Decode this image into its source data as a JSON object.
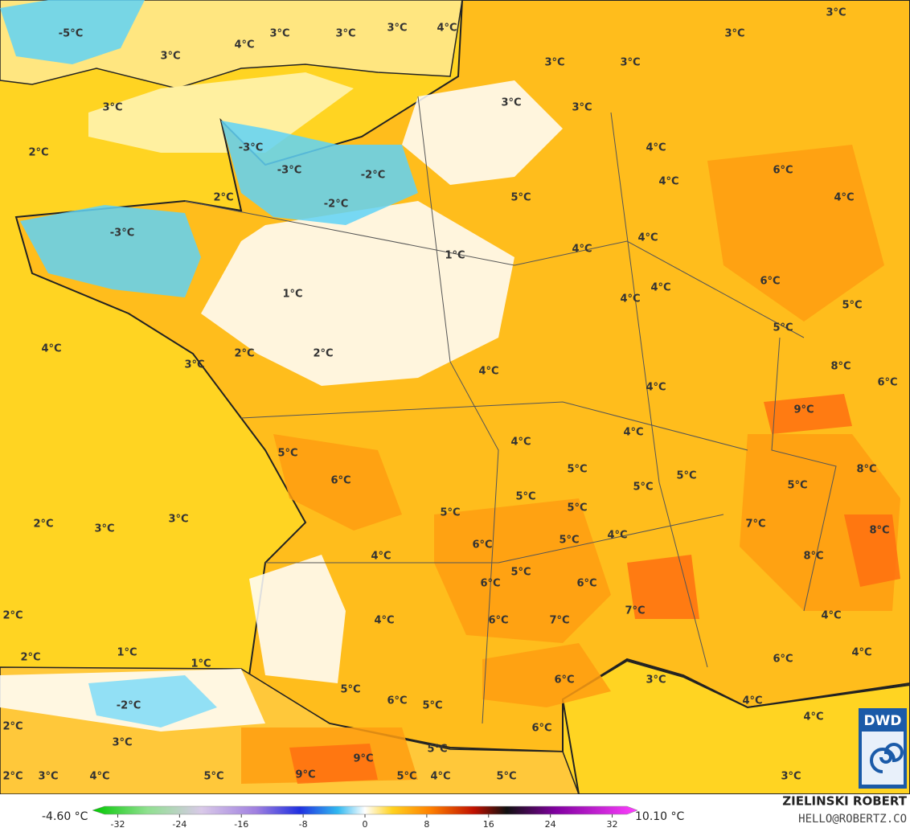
{
  "map_labels": [
    "-5°C",
    "3°C",
    "3°C",
    "3°C",
    "4°C",
    "3°C",
    "4°C",
    "3°C",
    "3°C",
    "3°C",
    "3°C",
    "3°C",
    "3°C",
    "3°C",
    "2°C",
    "-3°C",
    "-3°C",
    "-2°C",
    "4°C",
    "6°C",
    "2°C",
    "-2°C",
    "5°C",
    "4°C",
    "4°C",
    "-3°C",
    "4°C",
    "1°C",
    "4°C",
    "6°C",
    "4°C",
    "1°C",
    "4°C",
    "5°C",
    "5°C",
    "4°C",
    "2°C",
    "2°C",
    "3°C",
    "4°C",
    "8°C",
    "4°C",
    "6°C",
    "9°C",
    "4°C",
    "4°C",
    "5°C",
    "8°C",
    "6°C",
    "5°C",
    "5°C",
    "5°C",
    "5°C",
    "5°C",
    "5°C",
    "5°C",
    "3°C",
    "2°C",
    "3°C",
    "7°C",
    "8°C",
    "6°C",
    "4°C",
    "5°C",
    "4°C",
    "8°C",
    "5°C",
    "6°C",
    "6°C",
    "2°C",
    "4°C",
    "6°C",
    "7°C",
    "7°C",
    "4°C",
    "1°C",
    "1°C",
    "2°C",
    "4°C",
    "6°C",
    "3°C",
    "6°C",
    "5°C",
    "-2°C",
    "6°C",
    "5°C",
    "4°C",
    "4°C",
    "2°C",
    "6°C",
    "3°C",
    "9°C",
    "5°C",
    "2°C",
    "3°C",
    "4°C",
    "5°C",
    "9°C",
    "5°C",
    "4°C",
    "5°C",
    "3°C"
  ],
  "colorbar": {
    "min_label": "-4.60 °C",
    "max_label": "10.10 °C",
    "ticks": [
      -32,
      -24,
      -16,
      -8,
      0,
      8,
      16,
      24,
      32
    ]
  },
  "credit": {
    "name": "ZIELINSKI ROBERT",
    "contact": "HELLO@ROBERTZ.CO",
    "logo": "DWD"
  }
}
